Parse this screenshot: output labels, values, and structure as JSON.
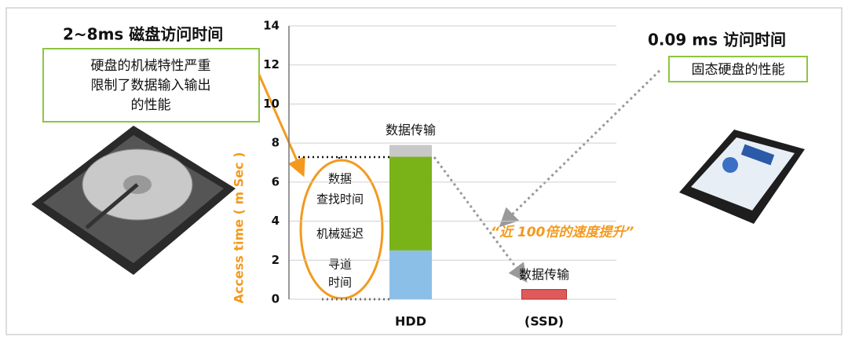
{
  "chart_data": {
    "type": "stacked_bar",
    "y_label": "Access time ( m Sec )",
    "categories": [
      "HDD",
      "(SSD)"
    ],
    "series": [
      {
        "colors": [
          "#8cbfe8",
          "#8cbfe8"
        ],
        "values": [
          2.5,
          null
        ]
      },
      {
        "colors": [
          "#7ab317",
          "#7ab317"
        ],
        "values": [
          4.8,
          null
        ]
      },
      {
        "colors": [
          "#c8c8c8",
          "#e05a5a"
        ],
        "values": [
          0.6,
          0.5
        ]
      }
    ],
    "bar_labels": [
      "数据传输",
      "数据传输"
    ],
    "ylim": [
      0,
      14
    ],
    "yticks": [
      0,
      2,
      4,
      6,
      8,
      10,
      12,
      14
    ],
    "grid": true,
    "oval_labels": [
      "数据",
      "查找时间",
      "机械延迟",
      "寻道",
      "时间"
    ],
    "left_title": "2~8ms 磁盘访问时间",
    "left_note": [
      "硬盘的机械特性严重",
      "限制了数据输入输出",
      "的性能"
    ],
    "right_title": "0.09 ms 访问时间",
    "right_note": "固态硬盘的性能",
    "speedup": "“近 100倍的速度提升”"
  }
}
